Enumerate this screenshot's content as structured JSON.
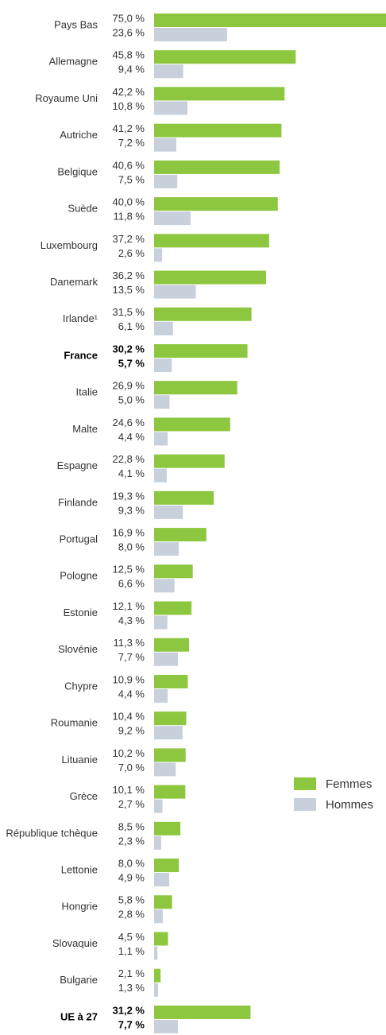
{
  "chart_data": {
    "type": "hbar",
    "categories": [
      "Pays Bas",
      "Allemagne",
      "Royaume Uni",
      "Autriche",
      "Belgique",
      "Suède",
      "Luxembourg",
      "Danemark",
      "Irlande¹",
      "France",
      "Italie",
      "Malte",
      "Espagne",
      "Finlande",
      "Portugal",
      "Pologne",
      "Estonie",
      "Slovénie",
      "Chypre",
      "Roumanie",
      "Lituanie",
      "Grèce",
      "République tchèque",
      "Lettonie",
      "Hongrie",
      "Slovaquie",
      "Bulgarie",
      "UE à 27"
    ],
    "bold_categories": [
      9,
      27
    ],
    "legend": "right",
    "series": [
      {
        "name": "Femmes",
        "color": "#8dc63f",
        "values": [
          75.0,
          45.8,
          42.2,
          41.2,
          40.6,
          40.0,
          37.2,
          36.2,
          31.5,
          30.2,
          26.9,
          24.6,
          22.8,
          19.3,
          16.9,
          12.5,
          12.1,
          11.3,
          10.9,
          10.4,
          10.2,
          10.1,
          8.5,
          8.0,
          5.8,
          4.5,
          2.1,
          31.2
        ],
        "value_labels": [
          "75,0 %",
          "45,8 %",
          "42,2 %",
          "41,2 %",
          "40,6 %",
          "40,0 %",
          "37,2 %",
          "36,2 %",
          "31,5 %",
          "30,2 %",
          "26,9 %",
          "24,6 %",
          "22,8 %",
          "19,3 %",
          "16,9 %",
          "12,5 %",
          "12,1 %",
          "11,3 %",
          "10,9 %",
          "10,4 %",
          "10,2 %",
          "10,1 %",
          "8,5 %",
          "8,0 %",
          "5,8 %",
          "4,5 %",
          "2,1 %",
          "31,2 %"
        ]
      },
      {
        "name": "Hommes",
        "color": "#c8d0dc",
        "values": [
          23.6,
          9.4,
          10.8,
          7.2,
          7.5,
          11.8,
          2.6,
          13.5,
          6.1,
          5.7,
          5.0,
          4.4,
          4.1,
          9.3,
          8.0,
          6.6,
          4.3,
          7.7,
          4.4,
          9.2,
          7.0,
          2.7,
          2.3,
          4.9,
          2.8,
          1.1,
          1.3,
          7.7
        ],
        "value_labels": [
          "23,6 %",
          "9,4 %",
          "10,8 %",
          "7,2 %",
          "7,5 %",
          "11,8 %",
          "2,6 %",
          "13,5 %",
          "6,1 %",
          "5,7 %",
          "5,0 %",
          "4,4 %",
          "4,1 %",
          "9,3 %",
          "8,0 %",
          "6,6 %",
          "4,3 %",
          "7,7 %",
          "4,4 %",
          "9,2 %",
          "7,0 %",
          "2,7 %",
          "2,3 %",
          "4,9 %",
          "2,8 %",
          "1,1 %",
          "1,3 %",
          "7,7 %"
        ]
      }
    ]
  }
}
